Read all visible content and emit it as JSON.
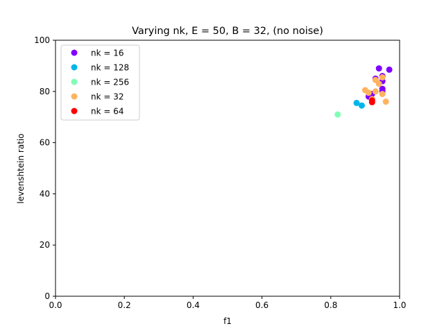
{
  "chart_data": {
    "type": "scatter",
    "title": "Varying nk, E = 50, B = 32, (no noise)",
    "xlabel": "f1",
    "ylabel": "levenshtein ratio",
    "xlim": [
      0.0,
      1.0
    ],
    "ylim": [
      0,
      100
    ],
    "xticks": [
      "0.0",
      "0.2",
      "0.4",
      "0.6",
      "0.8",
      "1.0"
    ],
    "yticks": [
      "0",
      "20",
      "40",
      "60",
      "80",
      "100"
    ],
    "grid": false,
    "legend_position": "top-left",
    "series": [
      {
        "name": "nk = 16",
        "color": "#8000ff",
        "points": [
          [
            0.94,
            89
          ],
          [
            0.97,
            88.5
          ],
          [
            0.95,
            86
          ],
          [
            0.93,
            85
          ],
          [
            0.95,
            84
          ],
          [
            0.95,
            81
          ],
          [
            0.95,
            80
          ],
          [
            0.92,
            79
          ],
          [
            0.91,
            78
          ]
        ]
      },
      {
        "name": "nk = 128",
        "color": "#00b5eb",
        "points": [
          [
            0.875,
            75.5
          ],
          [
            0.89,
            74.5
          ]
        ]
      },
      {
        "name": "nk = 256",
        "color": "#80ffb4",
        "points": [
          [
            0.82,
            71
          ]
        ]
      },
      {
        "name": "nk = 32",
        "color": "#ffb360",
        "points": [
          [
            0.95,
            85.5
          ],
          [
            0.93,
            84.5
          ],
          [
            0.94,
            83
          ],
          [
            0.9,
            80.5
          ],
          [
            0.93,
            80
          ],
          [
            0.95,
            79
          ],
          [
            0.91,
            79.5
          ],
          [
            0.92,
            77
          ],
          [
            0.96,
            76
          ]
        ]
      },
      {
        "name": "nk = 64",
        "color": "#ff0000",
        "points": [
          [
            0.92,
            76.5
          ],
          [
            0.92,
            75.8
          ]
        ]
      }
    ]
  }
}
